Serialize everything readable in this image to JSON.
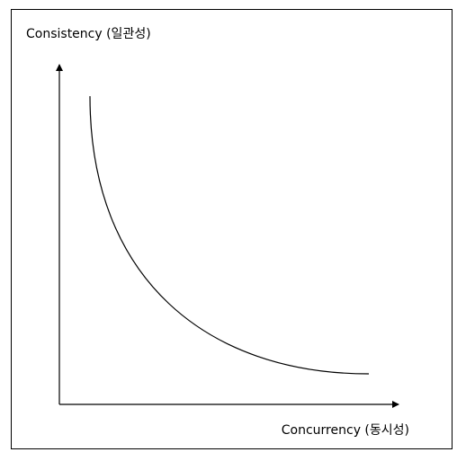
{
  "diagram": {
    "y_axis_label": "Consistency (일관성)",
    "x_axis_label": "Concurrency (동시성)"
  },
  "colors": {
    "stroke": "#000000",
    "background": "#ffffff"
  }
}
